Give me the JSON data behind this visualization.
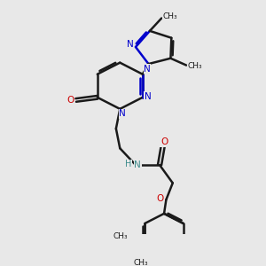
{
  "bg_color": "#e8e8e8",
  "bond_color": "#1a1a1a",
  "N_color": "#0000cc",
  "O_color": "#cc0000",
  "NH_color": "#3d8b8b",
  "figsize": [
    3.0,
    3.0
  ],
  "dpi": 100,
  "xlim": [
    0,
    10
  ],
  "ylim": [
    0,
    10
  ],
  "lw": 1.8
}
